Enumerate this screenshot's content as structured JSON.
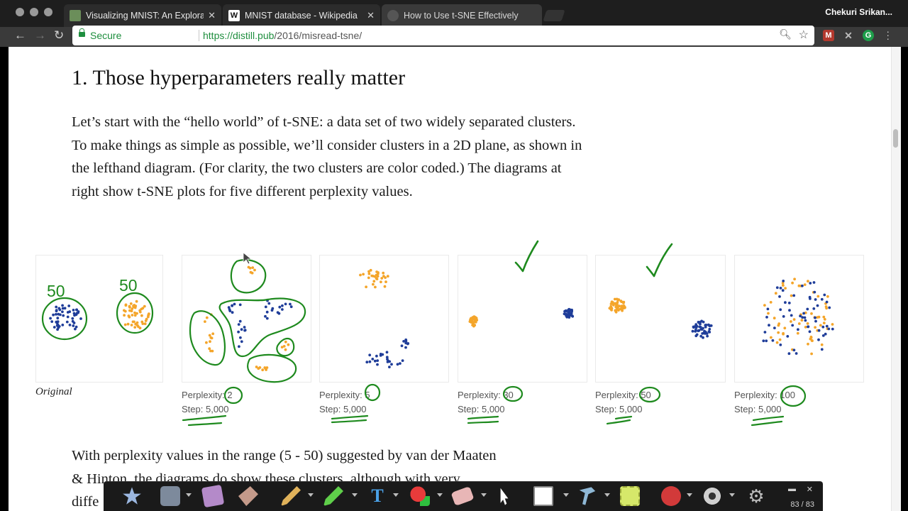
{
  "browser": {
    "tabs": [
      {
        "title": "Visualizing MNIST: An Explorati",
        "favicon_icon": "colah-favicon-icon",
        "active": false
      },
      {
        "title": "MNIST database - Wikipedia",
        "favicon_icon": "wikipedia-favicon-icon",
        "favicon_text": "W",
        "active": false
      },
      {
        "title": "How to Use t-SNE Effectively",
        "favicon_icon": "distill-favicon-icon",
        "active": true
      }
    ],
    "profile_name": "Chekuri Srikan...",
    "secure_label": "Secure",
    "url_host": "https://distill.pub",
    "url_path": "/2016/misread-tsne/"
  },
  "article": {
    "heading": "1. Those hyperparameters really matter",
    "paragraph": "Let’s start with the “hello world” of t-SNE: a data set of two widely separated clusters. To make things as simple as possible, we’ll consider clusters in a 2D plane, as shown in the lefthand diagram. (For clarity, the two clusters are color coded.) The diagrams at right show t-SNE plots for five different perplexity values.",
    "paragraph2_line1": "With perplexity values in the range (5 - 50) suggested by van der Maaten",
    "paragraph2_line2": "& Hinton, the diagrams do show these clusters, although with very",
    "paragraph2_line3": "diffe",
    "original_caption": "Original",
    "perplexity_label": "Perplexity:",
    "step_label": "Step:",
    "plots": [
      {
        "perplexity": "2",
        "step": "5,000"
      },
      {
        "perplexity": "5",
        "step": "5,000"
      },
      {
        "perplexity": "30",
        "step": "5,000"
      },
      {
        "perplexity": "50",
        "step": "5,000"
      },
      {
        "perplexity": "100",
        "step": "5,000"
      }
    ]
  },
  "annotations": {
    "left_count": "50",
    "right_count": "50",
    "ink_color": "#1e8a1e",
    "checkmarks_on": [
      "30",
      "50"
    ]
  },
  "colors": {
    "orange": "#f4a52a",
    "blue": "#1f3d99"
  },
  "dock": {
    "page_counter": "83 / 83",
    "tools": [
      "star-icon",
      "camera-icon",
      "window-icon",
      "eraser-board-icon",
      "pencil-icon",
      "highlighter-icon",
      "text-tool-icon",
      "shapes-icon",
      "eraser-icon",
      "pointer-icon",
      "whiteboard-icon",
      "hammer-icon",
      "note-icon",
      "record-icon",
      "webcam-icon",
      "settings-icon"
    ]
  }
}
